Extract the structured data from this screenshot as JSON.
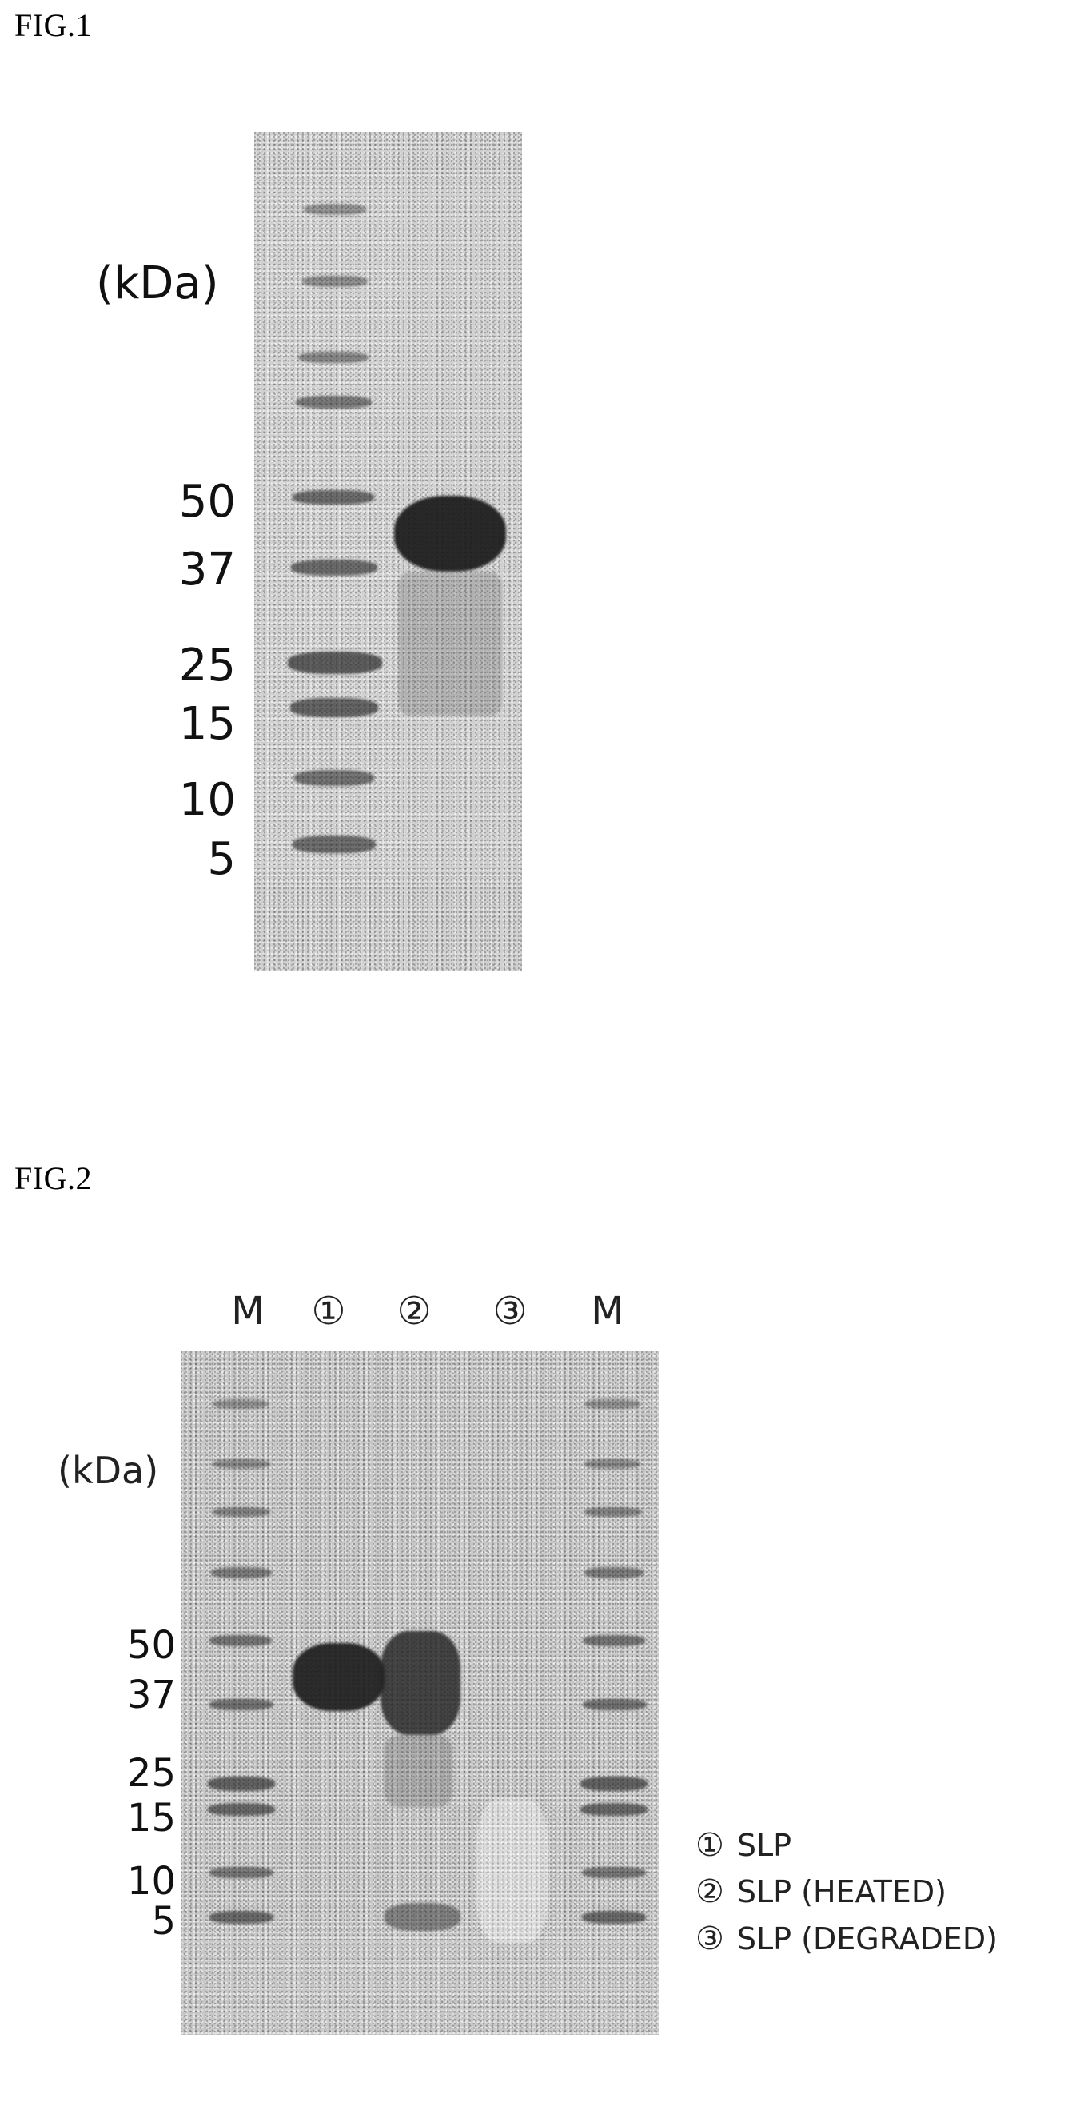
{
  "fig1": {
    "title": "FIG.1",
    "unit": "(kDa)",
    "markers": [
      "50",
      "37",
      "25",
      "15",
      "10",
      "5"
    ]
  },
  "fig2": {
    "title": "FIG.2",
    "unit": "(kDa)",
    "lanes": [
      "M",
      "①",
      "②",
      "③",
      "M"
    ],
    "markers": [
      "50",
      "37",
      "25",
      "15",
      "10",
      "5"
    ],
    "legend": [
      {
        "num": "①",
        "text": "SLP"
      },
      {
        "num": "②",
        "text": "SLP (HEATED)"
      },
      {
        "num": "③",
        "text": "SLP (DEGRADED)"
      }
    ]
  }
}
